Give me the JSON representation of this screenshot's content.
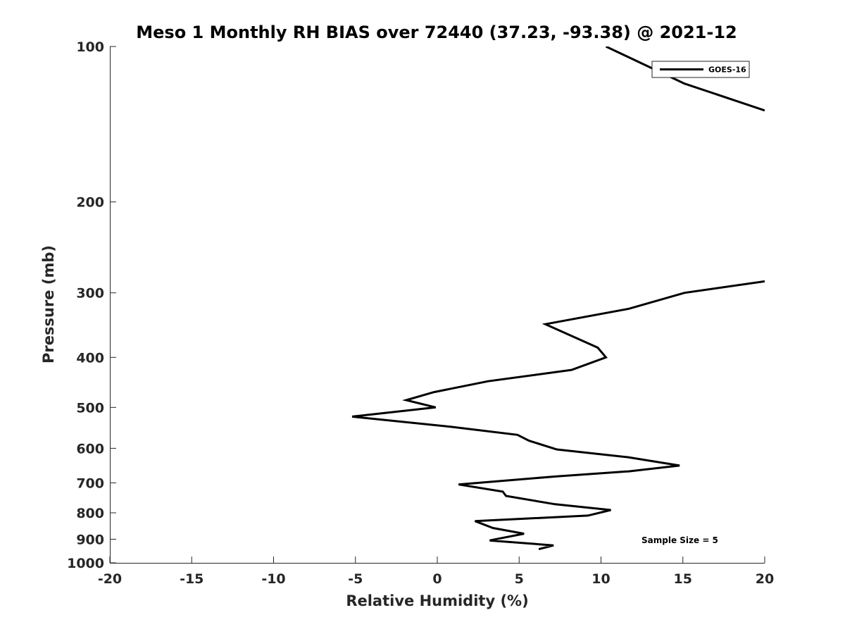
{
  "chart_data": {
    "type": "line",
    "title": "Meso 1 Monthly RH BIAS over 72440 (37.23, -93.38) @ 2021-12",
    "xlabel": "Relative Humidity (%)",
    "ylabel": "Pressure (mb)",
    "xlim": [
      -20,
      20
    ],
    "ylim": [
      100,
      1000
    ],
    "yscale": "log",
    "y_reversed": true,
    "xticks": [
      -20,
      -15,
      -10,
      -5,
      0,
      5,
      10,
      15,
      20
    ],
    "xtick_labels": [
      "-20",
      "-15",
      "-10",
      "-5",
      "0",
      "5",
      "10",
      "15",
      "20"
    ],
    "yticks": [
      100,
      200,
      300,
      400,
      500,
      600,
      700,
      800,
      900,
      1000
    ],
    "ytick_labels": [
      "100",
      "200",
      "300",
      "400",
      "500",
      "600",
      "700",
      "800",
      "900",
      "1000"
    ],
    "grid": false,
    "legend": {
      "position": "top-right",
      "entries": [
        "GOES-16"
      ]
    },
    "annotation": "Sample Size = 5",
    "series": [
      {
        "name": "GOES-16",
        "color": "#000000",
        "segments": [
          [
            [
              10.3,
              100
            ],
            [
              15.1,
              118
            ],
            [
              20.0,
              133
            ]
          ],
          [
            [
              20.0,
              285
            ],
            [
              15.1,
              300
            ],
            [
              11.7,
              322
            ],
            [
              6.6,
              345
            ],
            [
              9.8,
              383
            ],
            [
              10.3,
              400
            ],
            [
              8.2,
              423
            ],
            [
              3.1,
              445
            ],
            [
              -0.2,
              467
            ],
            [
              -1.9,
              484
            ],
            [
              -0.1,
              500
            ],
            [
              -5.2,
              521
            ],
            [
              0.8,
              545
            ],
            [
              4.9,
              565
            ],
            [
              5.6,
              580
            ],
            [
              7.3,
              603
            ],
            [
              11.6,
              624
            ],
            [
              14.8,
              648
            ],
            [
              11.7,
              665
            ],
            [
              7.3,
              680
            ],
            [
              1.3,
              705
            ],
            [
              4.0,
              728
            ],
            [
              4.2,
              742
            ],
            [
              7.2,
              770
            ],
            [
              10.6,
              790
            ],
            [
              9.2,
              810
            ],
            [
              2.3,
              830
            ],
            [
              3.4,
              856
            ],
            [
              5.3,
              878
            ],
            [
              3.2,
              905
            ],
            [
              7.1,
              925
            ],
            [
              6.2,
              941
            ]
          ]
        ]
      }
    ]
  }
}
